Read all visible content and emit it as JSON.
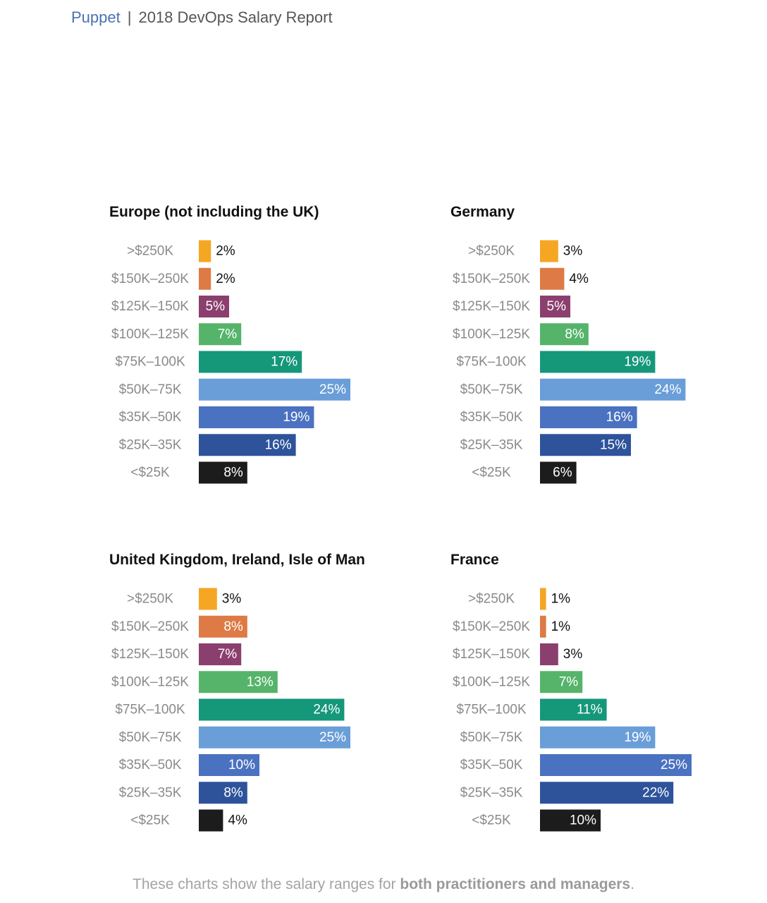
{
  "header": {
    "brand": "Puppet",
    "separator": "|",
    "report_title": "2018 DevOps Salary Report"
  },
  "colors": {
    "brand": "#4a72b0",
    "bands": [
      "#f5a623",
      "#dd7a45",
      "#8b3f6e",
      "#55b46a",
      "#15977a",
      "#6a9ed8",
      "#4a72c0",
      "#2e539b",
      "#1c1c1c"
    ]
  },
  "chart_data": [
    {
      "type": "bar",
      "title": "Europe (not including the UK)",
      "categories": [
        ">$250K",
        "$150K–250K",
        "$125K–150K",
        "$100K–125K",
        "$75K–100K",
        "$50K–75K",
        "$35K–50K",
        "$25K–35K",
        "<$25K"
      ],
      "values": [
        2,
        2,
        5,
        7,
        17,
        25,
        19,
        16,
        8
      ],
      "labels": [
        "2%",
        "2%",
        "5%",
        "7%",
        "17%",
        "25%",
        "19%",
        "16%",
        "8%"
      ],
      "orientation": "horizontal"
    },
    {
      "type": "bar",
      "title": "Germany",
      "categories": [
        ">$250K",
        "$150K–250K",
        "$125K–150K",
        "$100K–125K",
        "$75K–100K",
        "$50K–75K",
        "$35K–50K",
        "$25K–35K",
        "<$25K"
      ],
      "values": [
        3,
        4,
        5,
        8,
        19,
        24,
        16,
        15,
        6
      ],
      "labels": [
        "3%",
        "4%",
        "5%",
        "8%",
        "19%",
        "24%",
        "16%",
        "15%",
        "6%"
      ],
      "orientation": "horizontal"
    },
    {
      "type": "bar",
      "title": "United Kingdom, Ireland, Isle of Man",
      "categories": [
        ">$250K",
        "$150K–250K",
        "$125K–150K",
        "$100K–125K",
        "$75K–100K",
        "$50K–75K",
        "$35K–50K",
        "$25K–35K",
        "<$25K"
      ],
      "values": [
        3,
        8,
        7,
        13,
        24,
        25,
        10,
        8,
        4
      ],
      "labels": [
        "3%",
        "8%",
        "7%",
        "13%",
        "24%",
        "25%",
        "10%",
        "8%",
        "4%"
      ],
      "orientation": "horizontal"
    },
    {
      "type": "bar",
      "title": "France",
      "categories": [
        ">$250K",
        "$150K–250K",
        "$125K–150K",
        "$100K–125K",
        "$75K–100K",
        "$50K–75K",
        "$35K–50K",
        "$25K–35K",
        "<$25K"
      ],
      "values": [
        1,
        1,
        3,
        7,
        11,
        19,
        25,
        22,
        10
      ],
      "labels": [
        "1%",
        "1%",
        "3%",
        "7%",
        "11%",
        "19%",
        "25%",
        "22%",
        "10%"
      ],
      "orientation": "horizontal"
    }
  ],
  "footer": {
    "prefix": "These charts show the salary ranges for ",
    "emphasis": "both practitioners and managers",
    "suffix": "."
  }
}
